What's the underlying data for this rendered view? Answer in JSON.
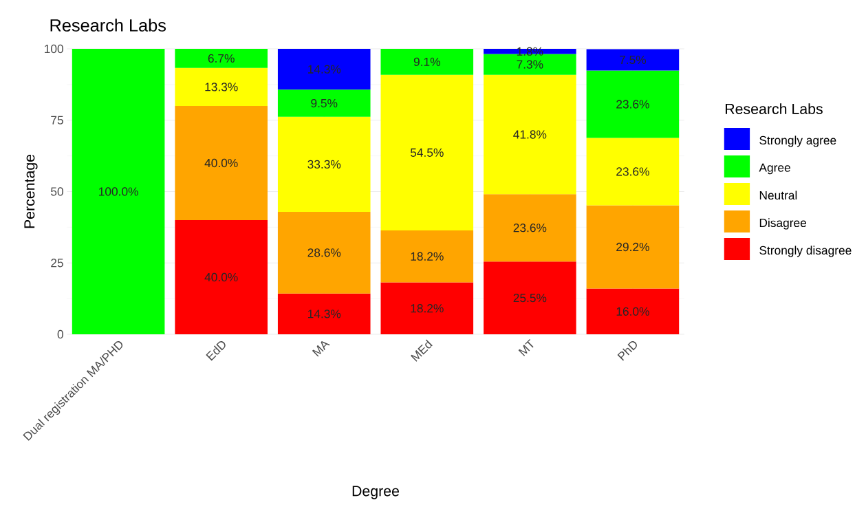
{
  "chart_data": {
    "type": "bar",
    "stacked": true,
    "title": "Research Labs",
    "xlabel": "Degree",
    "ylabel": "Percentage",
    "legend_title": "Research Labs",
    "categories": [
      "Dual registration MA/PHD",
      "EdD",
      "MA",
      "MEd",
      "MT",
      "PhD"
    ],
    "series": [
      {
        "name": "Strongly disagree",
        "color": "#ff0000",
        "values": [
          null,
          40.0,
          14.3,
          18.2,
          25.5,
          16.0
        ],
        "value_labels": [
          null,
          "40.0%",
          "14.3%",
          "18.2%",
          "25.5%",
          "16.0%"
        ]
      },
      {
        "name": "Disagree",
        "color": "#ffa500",
        "values": [
          null,
          40.0,
          28.6,
          18.2,
          23.6,
          29.2
        ],
        "value_labels": [
          null,
          "40.0%",
          "28.6%",
          "18.2%",
          "23.6%",
          "29.2%"
        ]
      },
      {
        "name": "Neutral",
        "color": "#ffff00",
        "values": [
          null,
          13.3,
          33.3,
          54.5,
          41.8,
          23.6
        ],
        "value_labels": [
          null,
          "13.3%",
          "33.3%",
          "54.5%",
          "41.8%",
          "23.6%"
        ]
      },
      {
        "name": "Agree",
        "color": "#00ff00",
        "values": [
          100.0,
          6.7,
          9.5,
          9.1,
          7.3,
          23.6
        ],
        "value_labels": [
          "100.0%",
          "6.7%",
          "9.5%",
          "9.1%",
          "7.3%",
          "23.6%"
        ]
      },
      {
        "name": "Strongly agree",
        "color": "#0000ff",
        "values": [
          null,
          null,
          14.3,
          null,
          1.8,
          7.5
        ],
        "value_labels": [
          null,
          null,
          "14.3%",
          null,
          "1.8%",
          "7.5%"
        ]
      }
    ],
    "ylim": [
      0,
      100
    ],
    "yticks": [
      0,
      25,
      50,
      75,
      100
    ],
    "grid": true,
    "legend": "right"
  }
}
